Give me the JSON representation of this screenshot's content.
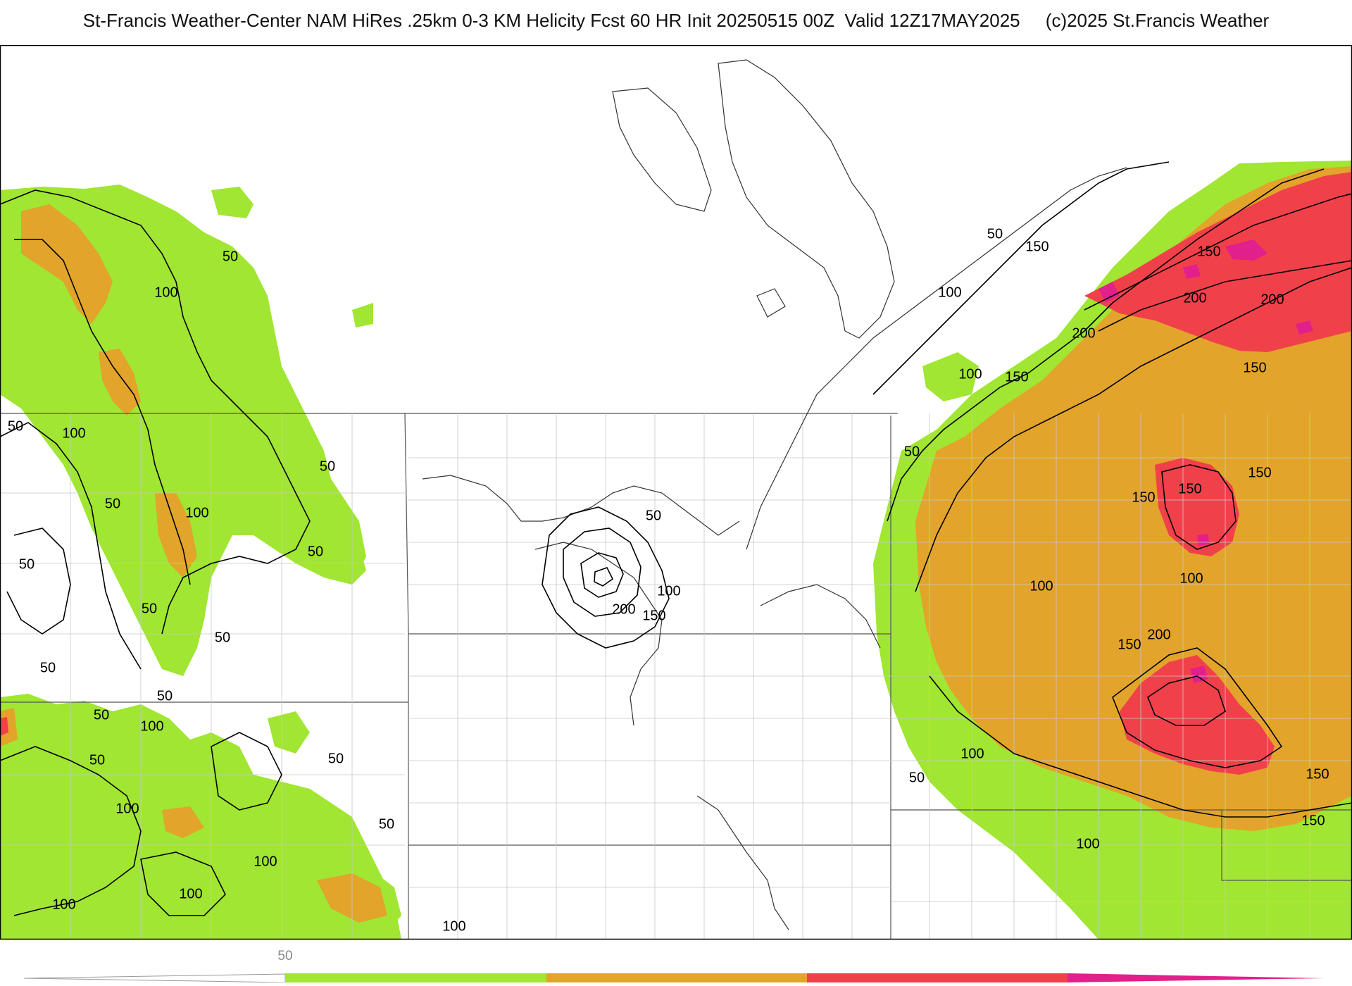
{
  "header": {
    "title": "St-Francis Weather-Center NAM HiRes .25km 0-3 KM Helicity Fcst 60 HR Init 20250515 00Z  Valid 12Z17MAY2025",
    "copyright": "(c)2025 St.Francis Weather"
  },
  "colors": {
    "level_50_100": "#a0e632",
    "level_100_150": "#e2a42a",
    "level_150_200": "#f0414a",
    "level_200_plus": "#e2208c",
    "contour_line": "#000000",
    "border_line": "#555555"
  },
  "legend": {
    "bins": [
      {
        "label": "50",
        "color": "#a0e632"
      },
      {
        "label": "",
        "color": "#e2a42a"
      },
      {
        "label": "",
        "color": "#f0414a"
      },
      {
        "label": "",
        "color": "#e2208c"
      }
    ]
  },
  "contour_labels": [
    {
      "text": "50"
    },
    {
      "text": "100"
    },
    {
      "text": "50"
    },
    {
      "text": "100"
    },
    {
      "text": "50"
    },
    {
      "text": "50"
    },
    {
      "text": "100"
    },
    {
      "text": "50"
    },
    {
      "text": "50"
    },
    {
      "text": "50"
    },
    {
      "text": "50"
    },
    {
      "text": "50"
    },
    {
      "text": "50"
    },
    {
      "text": "100"
    },
    {
      "text": "50"
    },
    {
      "text": "50"
    },
    {
      "text": "100"
    },
    {
      "text": "50"
    },
    {
      "text": "100"
    },
    {
      "text": "100"
    },
    {
      "text": "100"
    },
    {
      "text": "100"
    },
    {
      "text": "50"
    },
    {
      "text": "100"
    },
    {
      "text": "200"
    },
    {
      "text": "150"
    },
    {
      "text": "50"
    },
    {
      "text": "200"
    },
    {
      "text": "150"
    },
    {
      "text": "50"
    },
    {
      "text": "150"
    },
    {
      "text": "100"
    },
    {
      "text": "200"
    },
    {
      "text": "200"
    },
    {
      "text": "100"
    },
    {
      "text": "150"
    },
    {
      "text": "150"
    },
    {
      "text": "50"
    },
    {
      "text": "150"
    },
    {
      "text": "150"
    },
    {
      "text": "150"
    },
    {
      "text": "100"
    },
    {
      "text": "100"
    },
    {
      "text": "150"
    },
    {
      "text": "200"
    },
    {
      "text": "100"
    },
    {
      "text": "50"
    },
    {
      "text": "150"
    },
    {
      "text": "150"
    },
    {
      "text": "100"
    }
  ]
}
